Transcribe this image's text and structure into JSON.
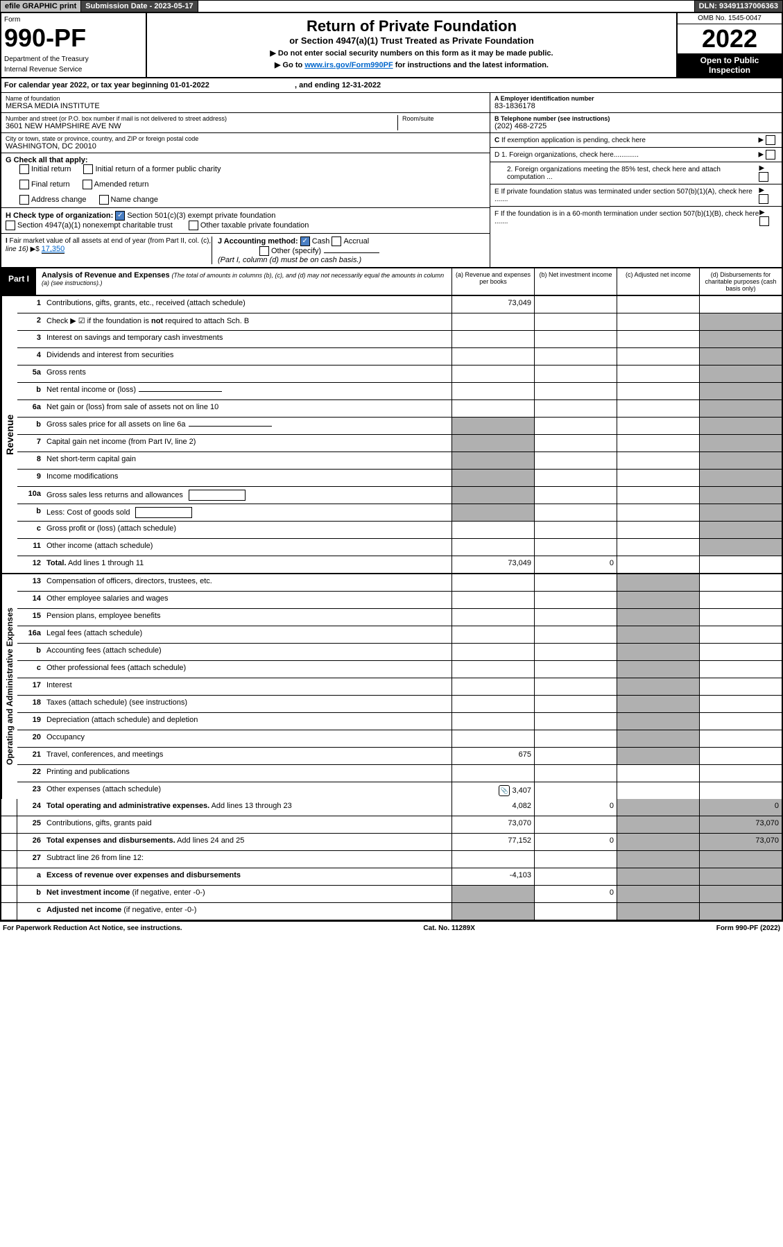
{
  "topbar": {
    "efile": "efile GRAPHIC print",
    "submission": "Submission Date - 2023-05-17",
    "dln": "DLN: 93491137006363"
  },
  "header": {
    "omb": "OMB No. 1545-0047",
    "form_label": "Form",
    "form_num": "990-PF",
    "dept": "Department of the Treasury",
    "irs": "Internal Revenue Service",
    "title": "Return of Private Foundation",
    "subtitle": "or Section 4947(a)(1) Trust Treated as Private Foundation",
    "instr1": "▶ Do not enter social security numbers on this form as it may be made public.",
    "instr2_pre": "▶ Go to ",
    "instr2_link": "www.irs.gov/Form990PF",
    "instr2_post": " for instructions and the latest information.",
    "year": "2022",
    "open": "Open to Public Inspection"
  },
  "calyear": {
    "text": "For calendar year 2022, or tax year beginning 01-01-2022",
    "ending": ", and ending 12-31-2022"
  },
  "id": {
    "name_label": "Name of foundation",
    "name": "MERSA MEDIA INSTITUTE",
    "addr_label": "Number and street (or P.O. box number if mail is not delivered to street address)",
    "addr": "3601 NEW HAMPSHIRE AVE NW",
    "room_label": "Room/suite",
    "city_label": "City or town, state or province, country, and ZIP or foreign postal code",
    "city": "WASHINGTON, DC  20010",
    "a_label": "A Employer identification number",
    "a": "83-1836178",
    "b_label": "B Telephone number (see instructions)",
    "b": "(202) 468-2725",
    "c_label": "C If exemption application is pending, check here",
    "d1": "D 1. Foreign organizations, check here.............",
    "d2": "2. Foreign organizations meeting the 85% test, check here and attach computation ...",
    "e": "E  If private foundation status was terminated under section 507(b)(1)(A), check here .......",
    "f": "F  If the foundation is in a 60-month termination under section 507(b)(1)(B), check here ......."
  },
  "g": {
    "label": "G Check all that apply:",
    "opts": [
      "Initial return",
      "Final return",
      "Address change",
      "Initial return of a former public charity",
      "Amended return",
      "Name change"
    ]
  },
  "h": {
    "label": "H Check type of organization:",
    "opt1": "Section 501(c)(3) exempt private foundation",
    "opt2": "Section 4947(a)(1) nonexempt charitable trust",
    "opt3": "Other taxable private foundation"
  },
  "i": {
    "label": "I Fair market value of all assets at end of year (from Part II, col. (c), line 16) ▶$",
    "val": "17,350"
  },
  "j": {
    "label": "J Accounting method:",
    "cash": "Cash",
    "accrual": "Accrual",
    "other": "Other (specify)",
    "note": "(Part I, column (d) must be on cash basis.)"
  },
  "part1": {
    "label": "Part I",
    "title": "Analysis of Revenue and Expenses",
    "note": "(The total of amounts in columns (b), (c), and (d) may not necessarily equal the amounts in column (a) (see instructions).)",
    "cols": {
      "a": "(a)   Revenue and expenses per books",
      "b": "(b)   Net investment income",
      "c": "(c)   Adjusted net income",
      "d": "(d)  Disbursements for charitable purposes (cash basis only)"
    }
  },
  "sidelabels": {
    "rev": "Revenue",
    "exp": "Operating and Administrative Expenses"
  },
  "rows": [
    {
      "n": "1",
      "d": "Contributions, gifts, grants, etc., received (attach schedule)",
      "a": "73,049"
    },
    {
      "n": "2",
      "d": "Check ▶ ☑ if the foundation is <b>not</b> required to attach Sch. B",
      "cb": true
    },
    {
      "n": "3",
      "d": "Interest on savings and temporary cash investments"
    },
    {
      "n": "4",
      "d": "Dividends and interest from securities"
    },
    {
      "n": "5a",
      "d": "Gross rents"
    },
    {
      "n": "b",
      "d": "Net rental income or (loss)",
      "innerline": true
    },
    {
      "n": "6a",
      "d": "Net gain or (loss) from sale of assets not on line 10"
    },
    {
      "n": "b",
      "d": "Gross sales price for all assets on line 6a",
      "innerline": true,
      "grayA": true
    },
    {
      "n": "7",
      "d": "Capital gain net income (from Part IV, line 2)",
      "grayA": true
    },
    {
      "n": "8",
      "d": "Net short-term capital gain",
      "grayA": true
    },
    {
      "n": "9",
      "d": "Income modifications",
      "grayA": true
    },
    {
      "n": "10a",
      "d": "Gross sales less returns and allowances",
      "innerbox": true,
      "grayA": true
    },
    {
      "n": "b",
      "d": "Less: Cost of goods sold",
      "innerbox": true,
      "grayA": true
    },
    {
      "n": "c",
      "d": "Gross profit or (loss) (attach schedule)"
    },
    {
      "n": "11",
      "d": "Other income (attach schedule)"
    },
    {
      "n": "12",
      "d": "<b>Total.</b> Add lines 1 through 11",
      "a": "73,049",
      "b": "0"
    },
    {
      "n": "13",
      "d": "Compensation of officers, directors, trustees, etc."
    },
    {
      "n": "14",
      "d": "Other employee salaries and wages"
    },
    {
      "n": "15",
      "d": "Pension plans, employee benefits"
    },
    {
      "n": "16a",
      "d": "Legal fees (attach schedule)"
    },
    {
      "n": "b",
      "d": "Accounting fees (attach schedule)"
    },
    {
      "n": "c",
      "d": "Other professional fees (attach schedule)"
    },
    {
      "n": "17",
      "d": "Interest"
    },
    {
      "n": "18",
      "d": "Taxes (attach schedule) (see instructions)"
    },
    {
      "n": "19",
      "d": "Depreciation (attach schedule) and depletion"
    },
    {
      "n": "20",
      "d": "Occupancy"
    },
    {
      "n": "21",
      "d": "Travel, conferences, and meetings",
      "a": "675"
    },
    {
      "n": "22",
      "d": "Printing and publications"
    },
    {
      "n": "23",
      "d": "Other expenses (attach schedule)",
      "a": "3,407",
      "icon": true
    },
    {
      "n": "24",
      "d": "<b>Total operating and administrative expenses.</b> Add lines 13 through 23",
      "a": "4,082",
      "b": "0",
      "dd": "0"
    },
    {
      "n": "25",
      "d": "Contributions, gifts, grants paid",
      "a": "73,070",
      "dd": "73,070"
    },
    {
      "n": "26",
      "d": "<b>Total expenses and disbursements.</b> Add lines 24 and 25",
      "a": "77,152",
      "b": "0",
      "dd": "73,070"
    },
    {
      "n": "27",
      "d": "Subtract line 26 from line 12:"
    },
    {
      "n": "a",
      "d": "<b>Excess of revenue over expenses and disbursements</b>",
      "a": "-4,103"
    },
    {
      "n": "b",
      "d": "<b>Net investment income</b> (if negative, enter -0-)",
      "b": "0",
      "grayA": true
    },
    {
      "n": "c",
      "d": "<b>Adjusted net income</b> (if negative, enter -0-)",
      "grayA": true
    }
  ],
  "grayD": {
    "13": true,
    "14": true,
    "15": true,
    "16a": true,
    "b16": true,
    "c16": true,
    "17": true,
    "18": true,
    "19": true,
    "20": true,
    "21": true,
    "22": true,
    "23": true
  },
  "footer": {
    "left": "For Paperwork Reduction Act Notice, see instructions.",
    "mid": "Cat. No. 11289X",
    "right": "Form 990-PF (2022)"
  },
  "colors": {
    "bg_gray": "#b0b0b0",
    "link": "#0066cc",
    "black": "#000000"
  }
}
